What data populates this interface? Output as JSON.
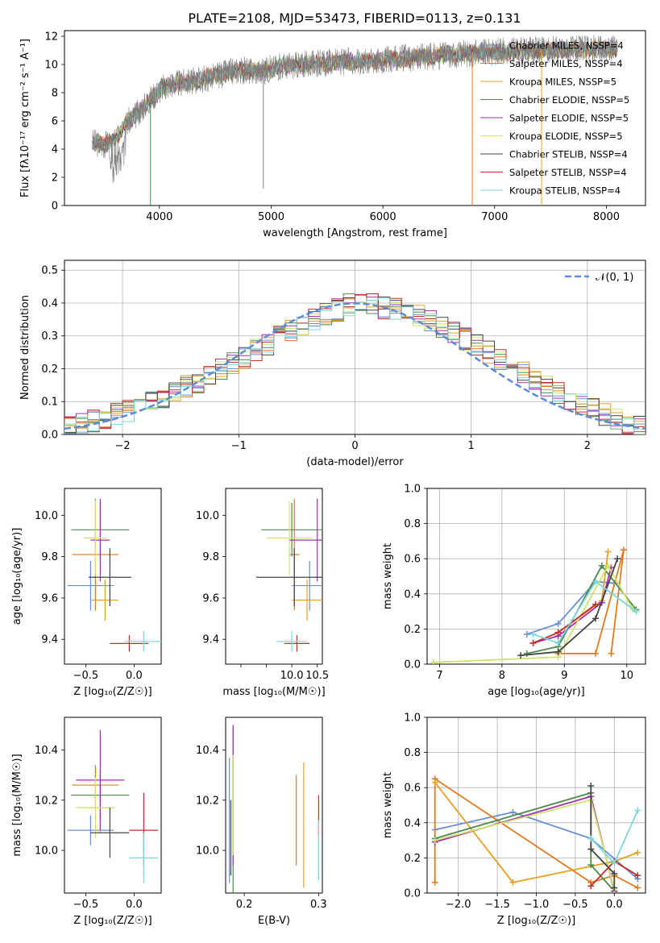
{
  "figure_title": "PLATE=2108, MJD=53473, FIBERID=0113, z=0.131",
  "model_colors": [
    "#6a8fd9",
    "#e07a1f",
    "#e7a024",
    "#4b8a4b",
    "#a030b0",
    "#cfe36a",
    "#444444",
    "#c0302a",
    "#7ad8d8"
  ],
  "chart_data": [
    {
      "id": "spectrum",
      "type": "line",
      "title": "PLATE=2108, MJD=53473, FIBERID=0113, z=0.131",
      "xlabel": "wavelength [Angstrom, rest frame]",
      "ylabel": "Flux [fλ10⁻¹⁷ erg cm⁻² s⁻¹ A⁻¹]",
      "xlim": [
        3150,
        8350
      ],
      "ylim": [
        0,
        12.4
      ],
      "xticks": [
        4000,
        5000,
        6000,
        7000,
        8000
      ],
      "yticks": [
        0,
        2,
        4,
        6,
        8,
        10,
        12
      ],
      "grid": false,
      "legend_position": "right",
      "data_color": "#7f7f7f",
      "continuum": {
        "x": [
          3400,
          3500,
          3600,
          3700,
          3800,
          3900,
          4000,
          4100,
          4200,
          4300,
          4500,
          4700,
          4900,
          5100,
          5300,
          5500,
          5700,
          6000,
          6300,
          6600,
          7000,
          7400,
          7800,
          8100
        ],
        "y": [
          4.5,
          4.3,
          4.7,
          5.8,
          6.5,
          7.4,
          8.2,
          8.6,
          8.7,
          8.8,
          9.2,
          9.6,
          9.5,
          9.9,
          10.0,
          10.1,
          10.2,
          10.3,
          10.5,
          10.7,
          10.9,
          11.0,
          11.1,
          11.1
        ]
      },
      "series": [
        {
          "name": "Chabrier MILES, N_SSP=4"
        },
        {
          "name": "Salpeter MILES, N_SSP=4"
        },
        {
          "name": "Kroupa MILES, N_SSP=5"
        },
        {
          "name": "Chabrier ELODIE, N_SSP=5"
        },
        {
          "name": "Salpeter ELODIE, N_SSP=5"
        },
        {
          "name": "Kroupa ELODIE, N_SSP=5"
        },
        {
          "name": "Chabrier STELIB, N_SSP=4"
        },
        {
          "name": "Salpeter STELIB, N_SSP=4"
        },
        {
          "name": "Kroupa STELIB, N_SSP=4"
        }
      ]
    },
    {
      "id": "residuals",
      "type": "line",
      "xlabel": "(data-model)/error",
      "ylabel": "Normed distribution",
      "xlim": [
        -2.5,
        2.5
      ],
      "ylim": [
        0,
        0.53
      ],
      "xticks": [
        -2,
        -1,
        0,
        1,
        2
      ],
      "yticks": [
        0.0,
        0.1,
        0.2,
        0.3,
        0.4,
        0.5
      ],
      "grid": true,
      "legend": "𝒩(0, 1)",
      "legend_position": "top-right",
      "gauss_color": "#5b8bd9",
      "bin_width": 0.1,
      "histogram_edges_start": -2.5,
      "histogram_mean": [
        0.02,
        0.03,
        0.04,
        0.05,
        0.06,
        0.07,
        0.085,
        0.1,
        0.115,
        0.13,
        0.145,
        0.16,
        0.18,
        0.195,
        0.215,
        0.235,
        0.255,
        0.275,
        0.3,
        0.32,
        0.335,
        0.35,
        0.365,
        0.38,
        0.395,
        0.4,
        0.395,
        0.385,
        0.38,
        0.37,
        0.36,
        0.345,
        0.33,
        0.31,
        0.29,
        0.27,
        0.25,
        0.23,
        0.205,
        0.185,
        0.165,
        0.145,
        0.125,
        0.105,
        0.09,
        0.075,
        0.06,
        0.045,
        0.035,
        0.025
      ]
    },
    {
      "id": "age-vs-Z",
      "type": "scatter",
      "xlabel": "Z [log₁₀(Z/Z☉)]",
      "ylabel": "age  [log₁₀(age/yr)]",
      "xlim": [
        -0.72,
        0.28
      ],
      "ylim": [
        9.28,
        10.13
      ],
      "xticks": [
        -0.5,
        0.0
      ],
      "xtick_labels": [
        "−0.5",
        "0.0"
      ],
      "yticks": [
        9.4,
        9.6,
        9.8,
        10.0
      ],
      "points": [
        {
          "x": -0.45,
          "y": 9.66,
          "xerr": 0.24,
          "yerr": 0.12
        },
        {
          "x": -0.4,
          "y": 9.81,
          "xerr": 0.24,
          "yerr": 0.27
        },
        {
          "x": -0.3,
          "y": 9.59,
          "xerr": 0.14,
          "yerr": 0.1
        },
        {
          "x": -0.35,
          "y": 9.93,
          "xerr": 0.3,
          "yerr": 0.13
        },
        {
          "x": -0.35,
          "y": 9.88,
          "xerr": 0.1,
          "yerr": 0.2
        },
        {
          "x": -0.4,
          "y": 9.89,
          "xerr": 0.12,
          "yerr": 0.18
        },
        {
          "x": -0.25,
          "y": 9.7,
          "xerr": 0.22,
          "yerr": 0.14
        },
        {
          "x": -0.05,
          "y": 9.38,
          "xerr": 0.2,
          "yerr": 0.04
        },
        {
          "x": 0.1,
          "y": 9.39,
          "xerr": 0.2,
          "yerr": 0.05
        }
      ]
    },
    {
      "id": "age-vs-mass",
      "type": "scatter",
      "xlabel": "mass [log₁₀(M/M☉)]",
      "xlim": [
        8.7,
        10.6
      ],
      "ylim": [
        9.28,
        10.13
      ],
      "xticks": [
        9.0,
        9.5,
        10.0,
        10.5
      ],
      "xtick_labels": [
        "",
        "",
        "10.0",
        "10.5"
      ],
      "yticks": [
        9.4,
        9.6,
        9.8,
        10.0
      ],
      "points": [
        {
          "x": 10.35,
          "y": 9.66,
          "xerr": 0.35,
          "yerr": 0.12
        },
        {
          "x": 10.05,
          "y": 9.81,
          "xerr": 0.1,
          "yerr": 0.27
        },
        {
          "x": 10.3,
          "y": 9.59,
          "xerr": 0.3,
          "yerr": 0.1
        },
        {
          "x": 10.0,
          "y": 9.93,
          "xerr": 0.6,
          "yerr": 0.13
        },
        {
          "x": 10.5,
          "y": 9.88,
          "xerr": 0.55,
          "yerr": 0.2
        },
        {
          "x": 9.95,
          "y": 9.89,
          "xerr": 0.45,
          "yerr": 0.18
        },
        {
          "x": 10.05,
          "y": 9.7,
          "xerr": 0.75,
          "yerr": 0.14
        },
        {
          "x": 10.1,
          "y": 9.38,
          "xerr": 0.25,
          "yerr": 0.04
        },
        {
          "x": 10.0,
          "y": 9.39,
          "xerr": 0.3,
          "yerr": 0.05
        }
      ]
    },
    {
      "id": "weight-vs-age",
      "type": "line",
      "xlabel": "age  [log₁₀(age/yr)]",
      "ylabel": "mass weight",
      "xlim": [
        6.8,
        10.3
      ],
      "ylim": [
        0,
        1.0
      ],
      "xticks": [
        7,
        8,
        9,
        10
      ],
      "yticks": [
        0.0,
        0.2,
        0.4,
        0.6,
        0.8,
        1.0
      ],
      "grid": true,
      "series": [
        {
          "x": [
            8.4,
            8.9,
            9.5,
            9.8
          ],
          "y": [
            0.17,
            0.23,
            0.47,
            0.46
          ]
        },
        {
          "x": [
            8.9,
            9.5,
            9.95,
            9.75
          ],
          "y": [
            0.06,
            0.06,
            0.65,
            0.06
          ]
        },
        {
          "x": [
            8.9,
            9.6,
            9.7
          ],
          "y": [
            0.18,
            0.36,
            0.64
          ]
        },
        {
          "x": [
            8.4,
            8.9,
            9.6,
            10.15
          ],
          "y": [
            0.06,
            0.1,
            0.56,
            0.31
          ]
        },
        {
          "x": [
            8.5,
            8.9,
            9.6,
            9.75
          ],
          "y": [
            0.12,
            0.16,
            0.35,
            0.55
          ]
        },
        {
          "x": [
            6.9,
            8.9,
            9.7,
            10.1
          ],
          "y": [
            0.01,
            0.04,
            0.56,
            0.31
          ]
        },
        {
          "x": [
            8.3,
            8.9,
            9.5,
            9.85
          ],
          "y": [
            0.05,
            0.07,
            0.26,
            0.6
          ]
        },
        {
          "x": [
            8.5,
            8.9,
            9.5
          ],
          "y": [
            0.12,
            0.18,
            0.34
          ]
        },
        {
          "x": [
            8.5,
            8.9,
            9.5,
            10.15
          ],
          "y": [
            0.17,
            0.12,
            0.47,
            0.3
          ]
        }
      ]
    },
    {
      "id": "mass-vs-Z",
      "type": "scatter",
      "xlabel": "Z [log₁₀(Z/Z☉)]",
      "ylabel": "mass [log₁₀(M/M☉)]",
      "xlim": [
        -0.72,
        0.28
      ],
      "ylim": [
        9.83,
        10.53
      ],
      "xticks": [
        -0.5,
        0.0
      ],
      "xtick_labels": [
        "−0.5",
        "0.0"
      ],
      "yticks": [
        10.0,
        10.2,
        10.4
      ],
      "points": [
        {
          "x": -0.45,
          "y": 10.08,
          "xerr": 0.24,
          "yerr": 0.06
        },
        {
          "x": -0.4,
          "y": 10.26,
          "xerr": 0.24,
          "yerr": 0.08
        },
        {
          "x": -0.35,
          "y": 10.17,
          "xerr": 0.14,
          "yerr": 0.1
        },
        {
          "x": -0.35,
          "y": 10.22,
          "xerr": 0.3,
          "yerr": 0.1
        },
        {
          "x": -0.35,
          "y": 10.28,
          "xerr": 0.25,
          "yerr": 0.2
        },
        {
          "x": -0.4,
          "y": 10.17,
          "xerr": 0.2,
          "yerr": 0.12
        },
        {
          "x": -0.25,
          "y": 10.07,
          "xerr": 0.2,
          "yerr": 0.1
        },
        {
          "x": 0.1,
          "y": 10.08,
          "xerr": 0.15,
          "yerr": 0.15
        },
        {
          "x": 0.1,
          "y": 9.97,
          "xerr": 0.15,
          "yerr": 0.1
        }
      ]
    },
    {
      "id": "mass-vs-EBV",
      "type": "scatter",
      "xlabel": "E(B-V)",
      "xlim": [
        0.175,
        0.305
      ],
      "ylim": [
        9.83,
        10.53
      ],
      "xticks": [
        0.2,
        0.3
      ],
      "yticks": [
        10.0,
        10.2,
        10.4
      ],
      "points": [
        {
          "x": 0.18,
          "y": 10.12,
          "yerr": 0.25
        },
        {
          "x": 0.27,
          "y": 10.12,
          "yerr": 0.18
        },
        {
          "x": 0.28,
          "y": 10.1,
          "yerr": 0.25
        },
        {
          "x": 0.185,
          "y": 10.13,
          "yerr": 0.36
        },
        {
          "x": 0.185,
          "y": 10.22,
          "yerr": 0.28
        },
        {
          "x": 0.185,
          "y": 10.18,
          "yerr": 0.2
        },
        {
          "x": 0.182,
          "y": 10.05,
          "yerr": 0.15
        },
        {
          "x": 0.3,
          "y": 10.14,
          "yerr": 0.08
        },
        {
          "x": 0.3,
          "y": 10.0,
          "yerr": 0.12
        }
      ]
    },
    {
      "id": "weight-vs-Z",
      "type": "line",
      "xlabel": "Z [log₁₀(Z/Z☉)]",
      "ylabel": "mass weight",
      "xlim": [
        -2.4,
        0.4
      ],
      "ylim": [
        0,
        1.0
      ],
      "xticks": [
        -2.0,
        -1.5,
        -1.0,
        -0.5,
        0.0
      ],
      "xtick_labels": [
        "−2.0",
        "−1.5",
        "−1.0",
        "−0.5",
        "0.0"
      ],
      "yticks": [
        0.0,
        0.2,
        0.4,
        0.6,
        0.8,
        1.0
      ],
      "grid": true,
      "series": [
        {
          "x": [
            -2.3,
            -1.3,
            -0.3,
            0.3
          ],
          "y": [
            0.36,
            0.46,
            0.31,
            0.08
          ]
        },
        {
          "x": [
            -2.3,
            -2.3,
            -0.3,
            0.0,
            0.3
          ],
          "y": [
            0.06,
            0.65,
            0.06,
            0.1,
            0.03
          ]
        },
        {
          "x": [
            -2.3,
            -1.3,
            0.0,
            0.3
          ],
          "y": [
            0.63,
            0.06,
            0.18,
            0.23
          ]
        },
        {
          "x": [
            -2.3,
            -0.3,
            -0.3,
            0.0
          ],
          "y": [
            0.31,
            0.57,
            0.16,
            0.01
          ]
        },
        {
          "x": [
            -2.3,
            -0.3,
            0.0
          ],
          "y": [
            0.29,
            0.55,
            0.01
          ]
        },
        {
          "x": [
            -2.3,
            -0.3,
            0.0
          ],
          "y": [
            0.3,
            0.53,
            0.02
          ]
        },
        {
          "x": [
            -0.3,
            -0.3,
            0.0,
            0.0
          ],
          "y": [
            0.61,
            0.25,
            0.11,
            0.03
          ]
        },
        {
          "x": [
            -0.3,
            0.0,
            0.3
          ],
          "y": [
            0.04,
            0.18,
            0.1
          ]
        },
        {
          "x": [
            -0.3,
            0.0,
            0.3
          ],
          "y": [
            0.31,
            0.17,
            0.47
          ]
        }
      ]
    }
  ]
}
